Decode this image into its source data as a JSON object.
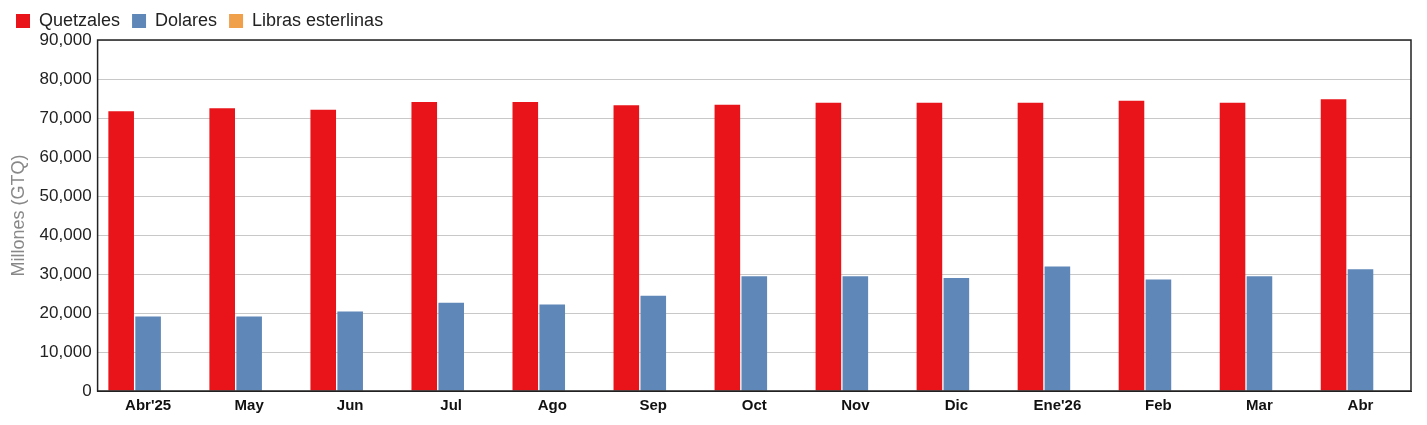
{
  "chart_data": {
    "type": "bar",
    "ylabel": "Millones (GTQ)",
    "categories": [
      "Abr'25",
      "May",
      "Jun",
      "Jul",
      "Ago",
      "Sep",
      "Oct",
      "Nov",
      "Dic",
      "Ene'26",
      "Feb",
      "Mar",
      "Abr"
    ],
    "series": [
      {
        "name": "Quetzales",
        "color": "#e8141a",
        "values": [
          71700,
          72500,
          72100,
          74100,
          74100,
          73300,
          73400,
          73900,
          73900,
          73900,
          74400,
          73900,
          74800
        ]
      },
      {
        "name": "Dolares",
        "color": "#5f88b8",
        "values": [
          19100,
          19100,
          20400,
          22600,
          22200,
          24400,
          29400,
          29400,
          29000,
          31900,
          28600,
          29400,
          31200
        ]
      },
      {
        "name": "Libras esterlinas",
        "color": "#f0a04b",
        "values": [
          0,
          0,
          0,
          0,
          0,
          0,
          0,
          0,
          0,
          0,
          0,
          0,
          0
        ]
      }
    ],
    "ylim": [
      0,
      90000
    ],
    "yticks": [
      0,
      {
        "value": 10000,
        "label": "10,000"
      },
      {
        "value": 20000,
        "label": "20,000"
      },
      {
        "value": 30000,
        "label": "30,000"
      },
      {
        "value": 40000,
        "label": "40,000"
      },
      {
        "value": 50000,
        "label": "50,000"
      },
      {
        "value": 60000,
        "label": "60,000"
      },
      {
        "value": 70000,
        "label": "70,000"
      },
      {
        "value": 80000,
        "label": "80,000"
      },
      {
        "value": 90000,
        "label": "90,000"
      }
    ],
    "grid": "y",
    "legend": "top left"
  }
}
